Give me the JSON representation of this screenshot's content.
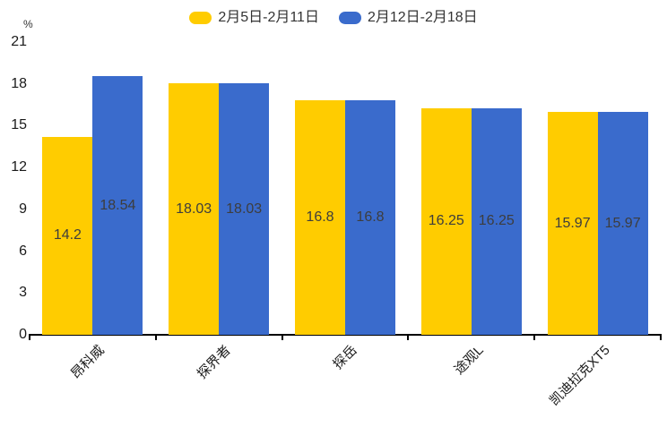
{
  "chart_data": {
    "type": "bar",
    "title": "",
    "categories": [
      "昂科威",
      "探界者",
      "探岳",
      "途观L",
      "凯迪拉克XT5"
    ],
    "series": [
      {
        "name": "2月5日-2月11日",
        "color": "#FFCC00",
        "values": [
          14.2,
          18.03,
          16.8,
          16.25,
          15.97
        ]
      },
      {
        "name": "2月12日-2月18日",
        "color": "#3A6BCC",
        "values": [
          18.54,
          18.03,
          16.8,
          16.25,
          15.97
        ]
      }
    ],
    "value_labels": [
      "14.2",
      "18.54",
      "18.03",
      "18.03",
      "16.8",
      "16.8",
      "16.25",
      "16.25",
      "15.97",
      "15.97"
    ],
    "ylabel_unit": "%",
    "ylim": [
      0,
      21
    ],
    "yticks": [
      0,
      3,
      6,
      9,
      12,
      15,
      18,
      21
    ],
    "grid": false,
    "legend_position": "top",
    "value_label_position": "inside-center"
  },
  "colors": {
    "background": "#FFFFFF",
    "series_1": "#FFCC00",
    "series_2": "#3A6BCC",
    "value_label_text": "#3D3D3D",
    "axis_line": "#000000",
    "tick_label_text": "#1A1A1A",
    "legend_text": "#333333"
  }
}
